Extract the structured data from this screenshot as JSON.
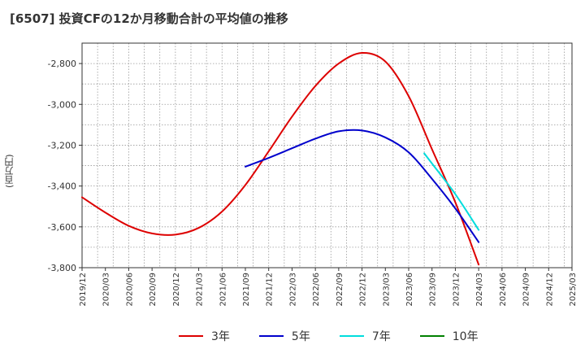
{
  "title": "[6507]  投資CFの12か月移動合計の平均値の推移",
  "ylabel": "(百万円)",
  "chart_data": {
    "type": "line",
    "ylim": [
      -3800,
      -2700
    ],
    "yticks": [
      -2800,
      -3000,
      -3200,
      -3400,
      -3600,
      -3800
    ],
    "ytick_labels": [
      "-2,800",
      "-3,000",
      "-3,200",
      "-3,400",
      "-3,600",
      "-3,800"
    ],
    "x_start": "2019-12",
    "x_end": "2025-03",
    "xtick_labels": [
      "2019/12",
      "2020/03",
      "2020/06",
      "2020/09",
      "2020/12",
      "2021/03",
      "2021/06",
      "2021/09",
      "2021/12",
      "2022/03",
      "2022/06",
      "2022/09",
      "2022/12",
      "2023/03",
      "2023/06",
      "2023/09",
      "2023/12",
      "2024/03",
      "2024/06",
      "2024/09",
      "2024/12",
      "2025/03"
    ],
    "grid": true,
    "legend_position": "bottom",
    "series": [
      {
        "name": "3年",
        "color": "#dd0000",
        "x": [
          "2019-12",
          "2020-03",
          "2020-06",
          "2020-09",
          "2020-12",
          "2021-03",
          "2021-06",
          "2021-09",
          "2021-12",
          "2022-03",
          "2022-06",
          "2022-09",
          "2022-12",
          "2023-03",
          "2023-06",
          "2023-09",
          "2023-12",
          "2024-03"
        ],
        "values": [
          -3455,
          -3530,
          -3595,
          -3632,
          -3638,
          -3605,
          -3525,
          -3395,
          -3230,
          -3060,
          -2910,
          -2800,
          -2748,
          -2790,
          -2960,
          -3220,
          -3480,
          -3785
        ]
      },
      {
        "name": "5年",
        "color": "#0000cc",
        "x": [
          "2021-09",
          "2021-12",
          "2022-03",
          "2022-06",
          "2022-09",
          "2022-12",
          "2023-03",
          "2023-06",
          "2023-09",
          "2023-12",
          "2024-03"
        ],
        "values": [
          -3305,
          -3262,
          -3215,
          -3168,
          -3132,
          -3128,
          -3162,
          -3235,
          -3365,
          -3510,
          -3675
        ]
      },
      {
        "name": "7年",
        "color": "#00dddd",
        "x": [
          "2023-08",
          "2023-09",
          "2023-12",
          "2024-03"
        ],
        "values": [
          -3240,
          -3290,
          -3440,
          -3615
        ]
      },
      {
        "name": "10年",
        "color": "#008000",
        "x": [],
        "values": []
      }
    ]
  }
}
